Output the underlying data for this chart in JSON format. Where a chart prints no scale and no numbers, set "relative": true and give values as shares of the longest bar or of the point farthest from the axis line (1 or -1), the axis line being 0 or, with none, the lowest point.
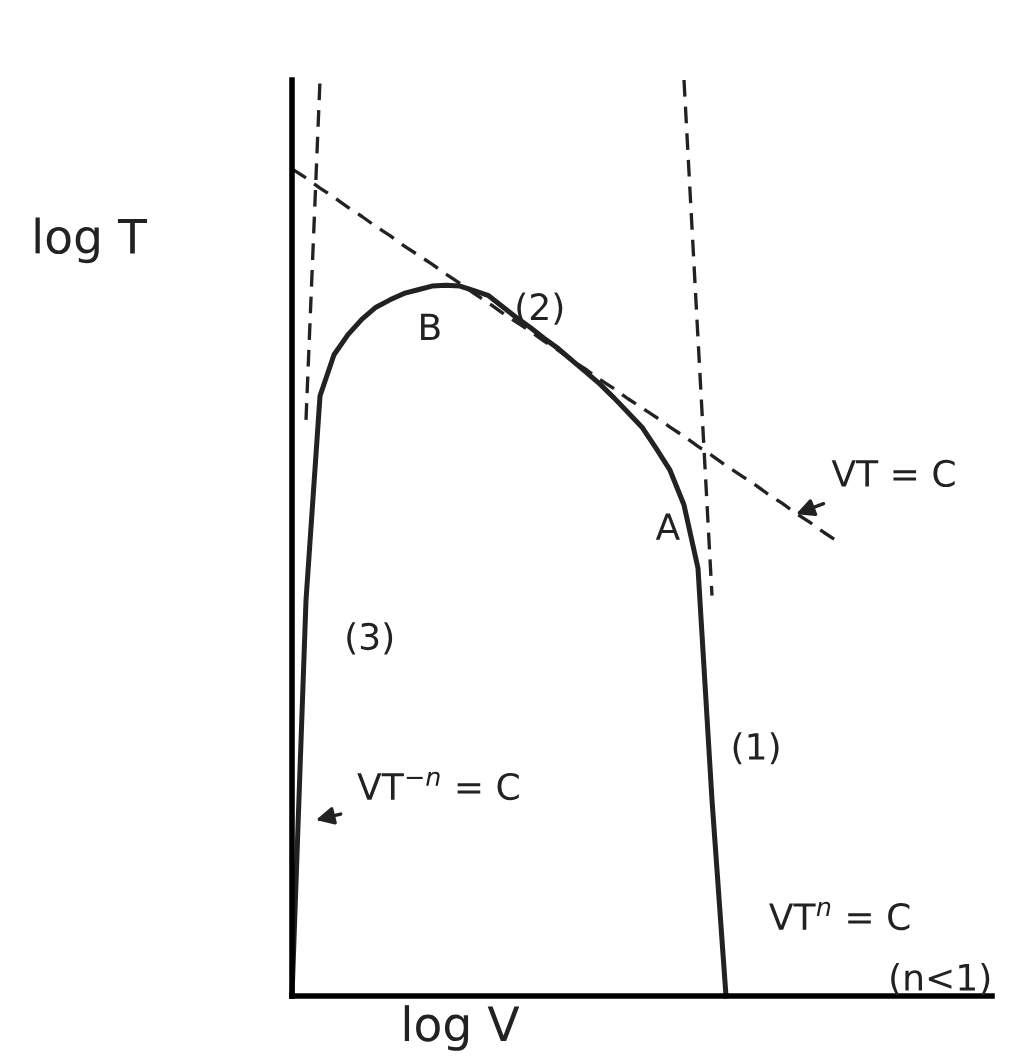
{
  "chart_data": {
    "type": "line",
    "relative": true,
    "xlabel": "log V",
    "ylabel": "log T",
    "legend": false,
    "marker": "none",
    "categories": [
      null,
      null,
      null,
      null,
      null,
      null,
      null,
      null,
      null,
      null,
      null,
      null,
      null,
      null,
      null,
      null,
      null,
      null,
      null,
      null,
      null,
      null,
      null,
      null,
      null,
      null,
      null,
      null,
      null,
      null,
      null,
      null,
      null,
      null,
      null,
      null,
      null,
      null,
      null,
      null,
      null,
      null,
      null,
      null,
      null,
      null,
      null,
      null,
      null,
      null,
      null
    ],
    "series": [
      {
        "color": "#222222",
        "line_style": "solid",
        "values": [
          0,
          0.432,
          0.655,
          0.7,
          0.722,
          0.739,
          0.752,
          0.76,
          0.767,
          0.771,
          0.775,
          0.776,
          0.775,
          0.77,
          0.765,
          0.753,
          0.741,
          0.73,
          0.718,
          0.707,
          0.694,
          0.681,
          0.668,
          0.653,
          0.637,
          0.621,
          0.598,
          0.574,
          0.536,
          0.467,
          0.214,
          0,
          null,
          null,
          null,
          null,
          null,
          null,
          null,
          null,
          null,
          null,
          null,
          null,
          null,
          null,
          null,
          null,
          null,
          null,
          null
        ]
      },
      {
        "color": "#222222",
        "line_style": "dashed",
        "values": [
          null,
          0.629,
          1,
          null,
          null,
          null,
          null,
          null,
          null,
          null,
          null,
          null,
          null,
          null,
          null,
          null,
          null,
          null,
          null,
          null,
          null,
          null,
          null,
          null,
          null,
          null,
          null,
          null,
          null,
          null,
          null,
          null,
          null,
          null,
          null,
          null,
          null,
          null,
          null,
          null,
          null,
          null,
          null,
          null,
          null,
          null,
          null,
          null,
          null,
          null,
          null
        ]
      },
      {
        "color": "#222222",
        "line_style": "dashed",
        "values": [
          0.903,
          0.893,
          0.882,
          0.872,
          0.861,
          0.851,
          0.84,
          0.83,
          0.819,
          0.809,
          0.799,
          0.788,
          0.778,
          0.767,
          0.757,
          0.746,
          0.736,
          0.726,
          0.715,
          0.705,
          0.694,
          0.684,
          0.673,
          0.663,
          0.652,
          0.642,
          0.632,
          0.621,
          0.611,
          0.6,
          0.59,
          0.579,
          0.569,
          0.559,
          0.548,
          0.538,
          0.527,
          0.517,
          0.506,
          0.496,
          null,
          null,
          null,
          null,
          null,
          null,
          null,
          null,
          null,
          null,
          null
        ]
      },
      {
        "color": "#222222",
        "line_style": "dashed",
        "values": [
          null,
          null,
          null,
          null,
          null,
          null,
          null,
          null,
          null,
          null,
          null,
          null,
          null,
          null,
          null,
          null,
          null,
          null,
          null,
          null,
          null,
          null,
          null,
          null,
          null,
          null,
          null,
          null,
          1,
          0.718,
          0.437,
          null,
          null,
          null,
          null,
          null,
          null,
          null,
          null,
          null,
          null,
          null,
          null,
          null,
          null,
          null,
          null,
          null,
          null,
          null,
          null
        ]
      }
    ],
    "annotations": [
      "B",
      "(2)",
      "A",
      "(3)",
      "(1)",
      "VT = C",
      "VT$^{−n}$ = C",
      "VT$^{n}$ = C",
      "(n<1)"
    ]
  }
}
